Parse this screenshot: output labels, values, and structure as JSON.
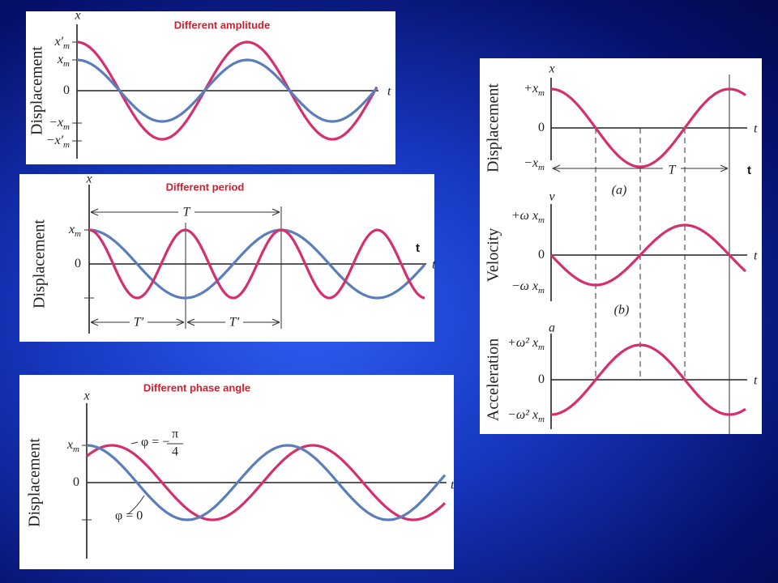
{
  "panels": [
    {
      "title": "Different amplitude",
      "axis_label": "Displacement",
      "x_axis": "x",
      "t_axis": "t",
      "ticks": [
        {
          "text": "x′",
          "sub": "m"
        },
        {
          "text": "x",
          "sub": "m"
        },
        {
          "text": "0"
        },
        {
          "text": "−x",
          "sub": "m"
        },
        {
          "text": "−x′",
          "sub": "m"
        }
      ]
    },
    {
      "title": "Different period",
      "axis_label": "Displacement",
      "x_axis": "x",
      "t_axis": "t",
      "note": "t",
      "ticks": [
        {
          "text": "x",
          "sub": "m"
        },
        {
          "text": "0"
        }
      ],
      "period_label": "T",
      "half_period_labels": [
        "T′",
        "T′"
      ]
    },
    {
      "title": "Different phase angle",
      "axis_label": "Displacement",
      "x_axis": "x",
      "t_axis": "t",
      "ticks": [
        {
          "text": "x",
          "sub": "m"
        },
        {
          "text": "0"
        }
      ],
      "phase_label_1": {
        "text": "φ = −",
        "num": "π",
        "den": "4"
      },
      "phase_label_2": "φ = 0"
    },
    {
      "note": "t",
      "period_label": "T",
      "graphs": [
        {
          "axis_label": "Displacement",
          "var": "x",
          "t_axis": "t",
          "caption": "(a)",
          "ticks": [
            {
              "text": "+x",
              "sub": "m"
            },
            {
              "text": "0"
            },
            {
              "text": "−x",
              "sub": "m"
            }
          ]
        },
        {
          "axis_label": "Velocity",
          "var": "v",
          "t_axis": "t",
          "caption": "(b)",
          "ticks": [
            {
              "text": "+ω x",
              "sub": "m"
            },
            {
              "text": "0"
            },
            {
              "text": "−ω x",
              "sub": "m"
            }
          ]
        },
        {
          "axis_label": "Acceleration",
          "var": "a",
          "t_axis": "t",
          "ticks": [
            {
              "text": "+ω² x",
              "sub": "m"
            },
            {
              "text": "0"
            },
            {
              "text": "−ω² x",
              "sub": "m"
            }
          ]
        }
      ]
    }
  ]
}
